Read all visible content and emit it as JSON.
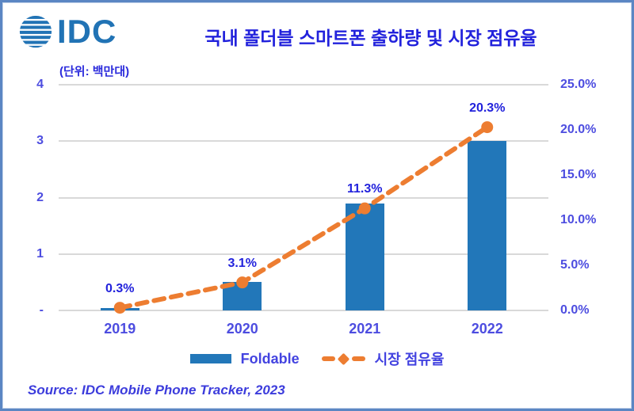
{
  "branding": {
    "logo_text": "IDC",
    "logo_color": "#2173b5"
  },
  "header": {
    "title": "국내 폴더블 스마트폰 출하량 및 시장 점유율",
    "title_color": "#2222dc"
  },
  "unit_note": "(단위: 백만대)",
  "chart_data": {
    "type": "combo-bar-line",
    "categories": [
      "2019",
      "2020",
      "2021",
      "2022"
    ],
    "series": [
      {
        "name": "Foldable",
        "type": "bar",
        "axis": "left",
        "values": [
          0.04,
          0.5,
          1.9,
          3.0
        ],
        "color": "#2277b9"
      },
      {
        "name": "시장 점유율",
        "type": "line",
        "axis": "right",
        "values": [
          0.3,
          3.1,
          11.3,
          20.3
        ],
        "labels": [
          "0.3%",
          "3.1%",
          "11.3%",
          "20.3%"
        ],
        "color": "#ed7d31",
        "line_style": "dashed",
        "marker": "circle"
      }
    ],
    "left_axis": {
      "ticks": [
        "4",
        "3",
        "2",
        "1",
        "-"
      ],
      "min": 0,
      "max": 4
    },
    "right_axis": {
      "ticks": [
        "25.0%",
        "20.0%",
        "15.0%",
        "10.0%",
        "5.0%",
        "0.0%"
      ],
      "min": 0,
      "max": 25
    },
    "grid": true,
    "gridline_color": "#d9d9d9",
    "legend_position": "bottom"
  },
  "legend": {
    "bar_label": "Foldable",
    "line_label": "시장 점유율"
  },
  "source": "Source: IDC Mobile Phone Tracker, 2023"
}
